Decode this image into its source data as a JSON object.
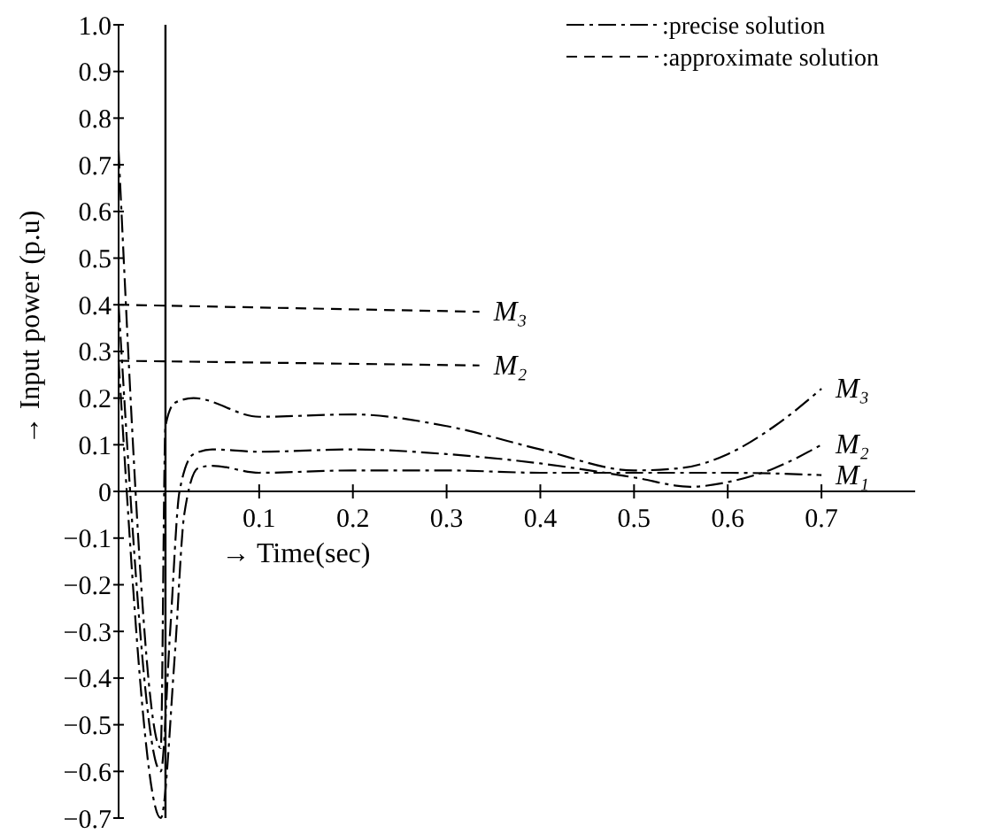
{
  "chart_data": {
    "type": "line",
    "xlabel": "→ Time(sec)",
    "ylabel": "→ Input power (p.u)",
    "xlim": [
      -0.05,
      0.8
    ],
    "ylim": [
      -0.7,
      1.0
    ],
    "xticks": [
      0.1,
      0.2,
      0.3,
      0.4,
      0.5,
      0.6,
      0.7
    ],
    "yticks": [
      {
        "value": -0.7,
        "label": "−0.7"
      },
      {
        "value": -0.6,
        "label": "−0.6"
      },
      {
        "value": -0.5,
        "label": "−0.5"
      },
      {
        "value": -0.4,
        "label": "−0.4"
      },
      {
        "value": -0.3,
        "label": "−0.3"
      },
      {
        "value": -0.2,
        "label": "−0.2"
      },
      {
        "value": -0.1,
        "label": "−0.1"
      },
      0,
      {
        "value": 0.1,
        "label": "0.1"
      },
      {
        "value": 0.2,
        "label": "0.2"
      },
      {
        "value": 0.3,
        "label": "0.3"
      },
      {
        "value": 0.4,
        "label": "0.4"
      },
      {
        "value": 0.5,
        "label": "0.5"
      },
      {
        "value": 0.6,
        "label": "0.6"
      },
      {
        "value": 0.7,
        "label": "0.7"
      },
      {
        "value": 0.8,
        "label": "0.8"
      },
      {
        "value": 0.9,
        "label": "0.9"
      },
      {
        "value": 1.0,
        "label": "1.0"
      }
    ],
    "legend": "top right",
    "marker": "none",
    "annotations": [
      ":precise solution",
      ":approximate solution"
    ],
    "ref_lines": [
      {
        "axis": "x",
        "value": 0,
        "color": "#000000"
      }
    ],
    "series": [
      {
        "name": "M₁",
        "color": "#000000",
        "line_style": "dashdot",
        "x": [
          -0.05,
          -0.005,
          0.01,
          0.02,
          0.035,
          0.05,
          0.1,
          0.2,
          0.3,
          0.4,
          0.5,
          0.6,
          0.7
        ],
        "values": [
          0.28,
          -0.7,
          -0.35,
          -0.05,
          0.05,
          0.055,
          0.04,
          0.045,
          0.045,
          0.04,
          0.04,
          0.04,
          0.035
        ]
      },
      {
        "name": "M₂",
        "color": "#000000",
        "line_style": "dashdot",
        "x": [
          -0.05,
          -0.005,
          0.005,
          0.015,
          0.03,
          0.05,
          0.1,
          0.2,
          0.3,
          0.4,
          0.5,
          0.56,
          0.6,
          0.65,
          0.7
        ],
        "values": [
          0.4,
          -0.6,
          -0.3,
          0.0,
          0.08,
          0.09,
          0.085,
          0.09,
          0.08,
          0.06,
          0.03,
          0.01,
          0.02,
          0.05,
          0.1
        ]
      },
      {
        "name": "M₃",
        "color": "#000000",
        "line_style": "dashdot",
        "x": [
          -0.05,
          -0.005,
          0.0,
          0.01,
          0.03,
          0.1,
          0.2,
          0.3,
          0.4,
          0.5,
          0.55,
          0.6,
          0.65,
          0.7
        ],
        "values": [
          0.73,
          -0.55,
          0.14,
          0.19,
          0.2,
          0.16,
          0.165,
          0.14,
          0.09,
          0.045,
          0.05,
          0.08,
          0.14,
          0.22
        ]
      },
      {
        "name": "M₂",
        "color": "#000000",
        "line_style": "dashed",
        "x": [
          -0.05,
          0.335
        ],
        "values": [
          0.28,
          0.27
        ]
      },
      {
        "name": "M₃",
        "color": "#000000",
        "line_style": "dashed",
        "x": [
          -0.05,
          0.335
        ],
        "values": [
          0.4,
          0.385
        ]
      }
    ]
  }
}
